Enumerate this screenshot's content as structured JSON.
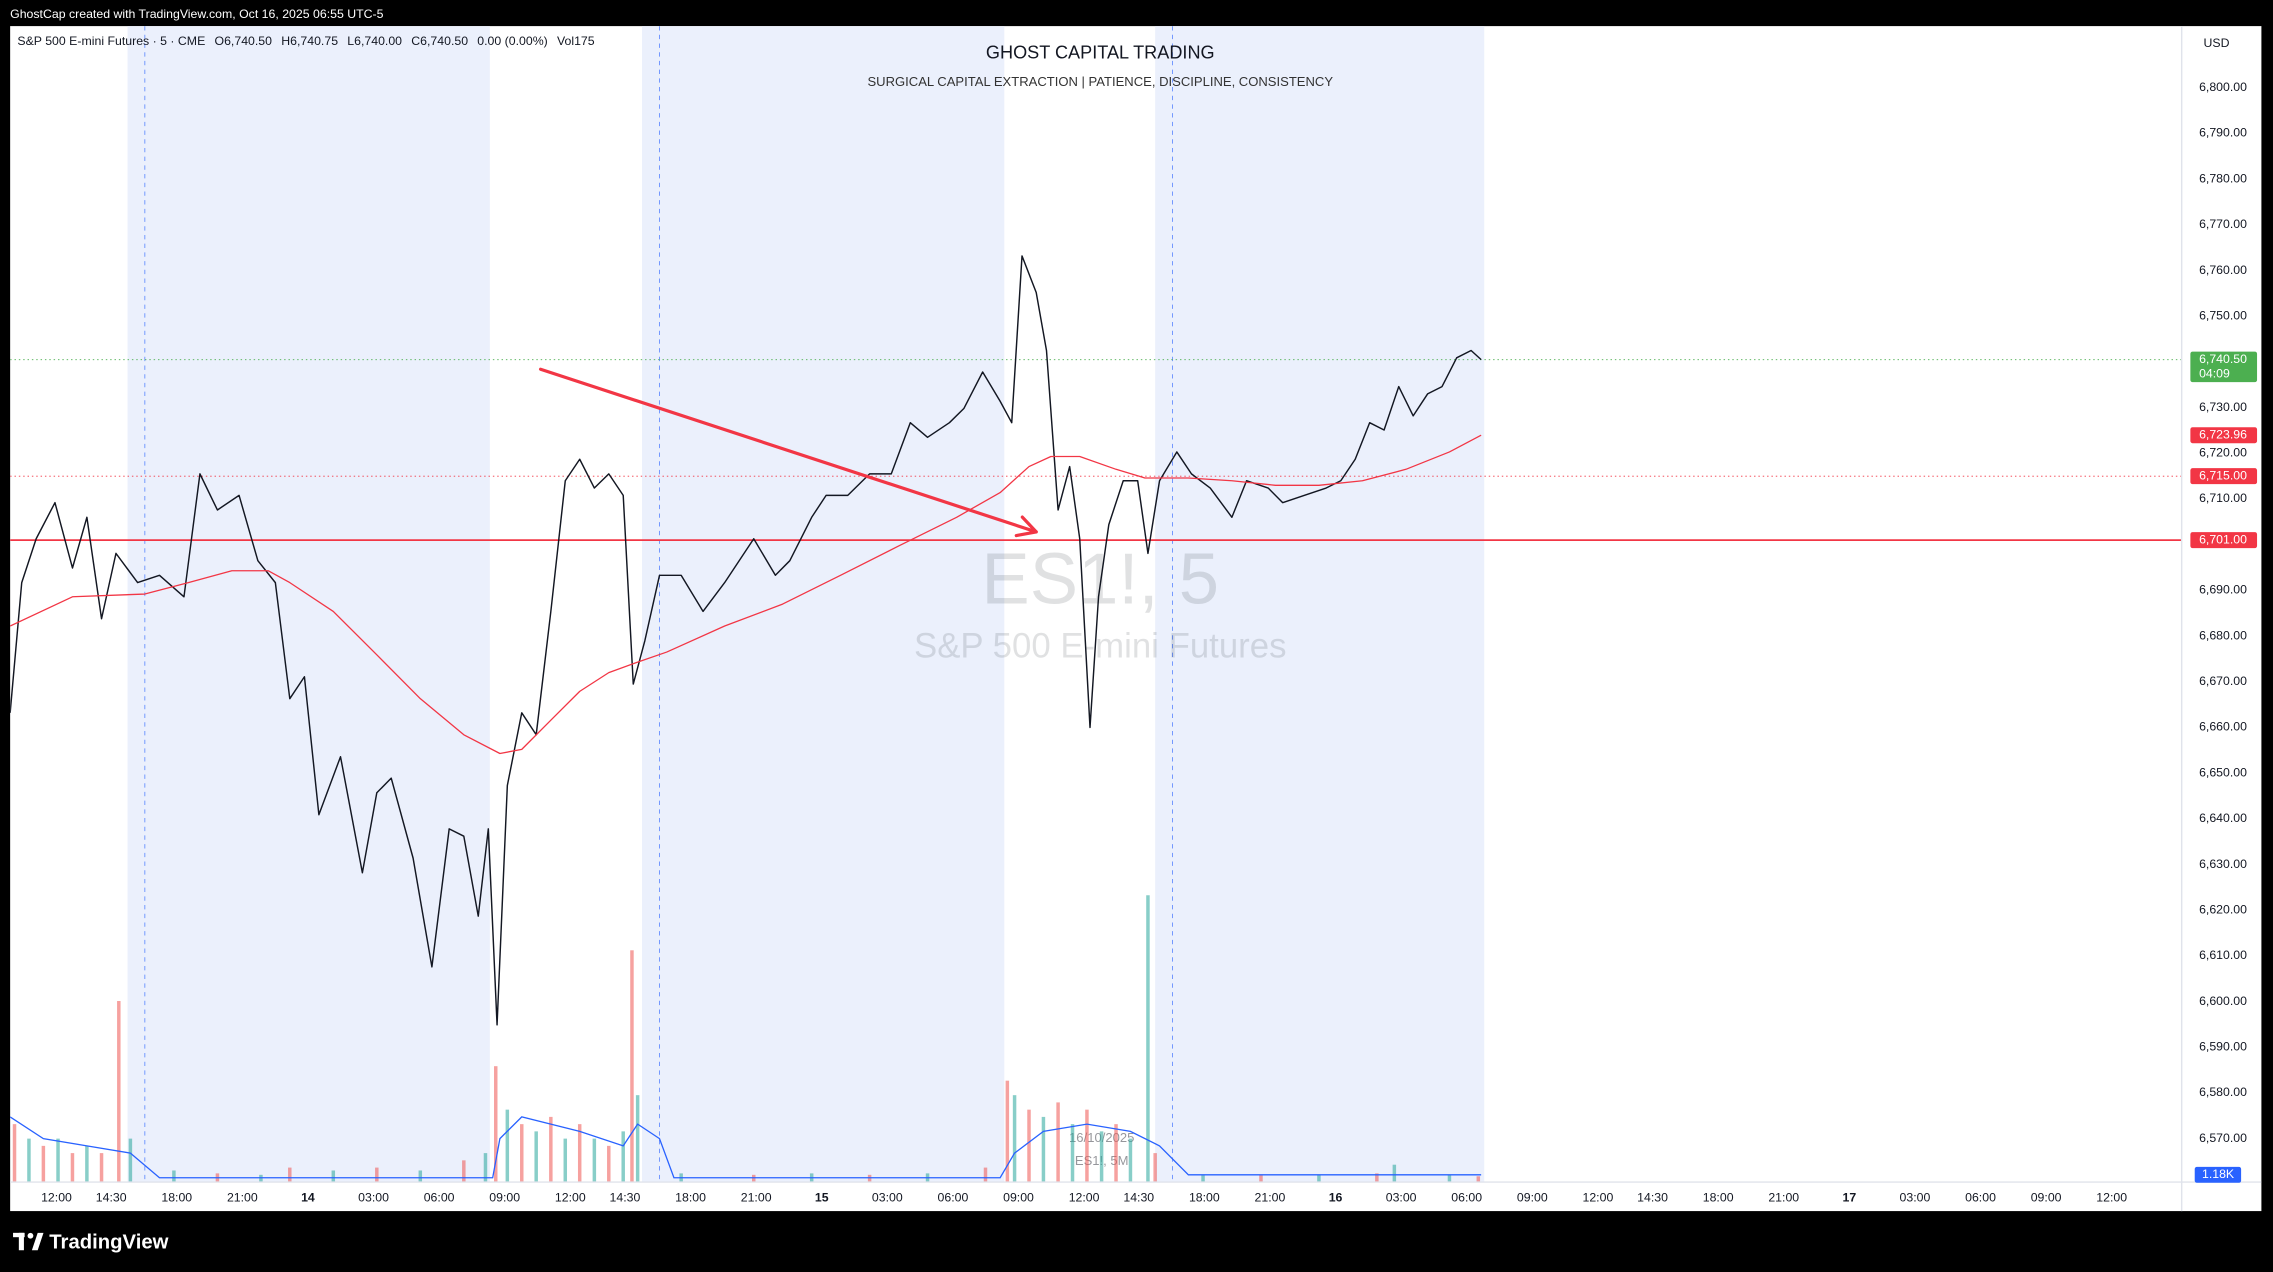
{
  "header": {
    "attribution": "GhostCap created with TradingView.com, Oct 16, 2025 06:55 UTC-5",
    "brand": "TradingView"
  },
  "chart_data": {
    "type": "line",
    "title": "GHOST CAPITAL TRADING",
    "subtitle": "SURGICAL CAPITAL EXTRACTION |  PATIENCE, DISCIPLINE, CONSISTENCY",
    "symbol": "S&P 500 E-mini Futures · 5 · CME",
    "ohlc": [
      "O6,740.50",
      "H6,740.75",
      "L6,740.00",
      "C6,740.50",
      "0.00 (0.00%)",
      "Vol175"
    ],
    "watermark": "ES1!, 5",
    "watermark_name": "S&P 500 E-mini Futures",
    "stamp": [
      "16/10/2025",
      "ES1!, 5M"
    ],
    "currency": "USD",
    "grid": false,
    "xlim": [
      -2.12,
      97.2
    ],
    "ylim": [
      6560.5,
      6813.5
    ],
    "xticks": [
      {
        "value": 0,
        "label": "12:00"
      },
      {
        "value": 2.5,
        "label": "14:30"
      },
      {
        "value": 5.5,
        "label": "18:00"
      },
      {
        "value": 8.5,
        "label": "21:00"
      },
      {
        "value": 11.5,
        "label": "14",
        "major": true
      },
      {
        "value": 14.5,
        "label": "03:00"
      },
      {
        "value": 17.5,
        "label": "06:00"
      },
      {
        "value": 20.5,
        "label": "09:00"
      },
      {
        "value": 23.5,
        "label": "12:00"
      },
      {
        "value": 26,
        "label": "14:30"
      },
      {
        "value": 29,
        "label": "18:00"
      },
      {
        "value": 32,
        "label": "21:00"
      },
      {
        "value": 35,
        "label": "15",
        "major": true
      },
      {
        "value": 38,
        "label": "03:00"
      },
      {
        "value": 41,
        "label": "06:00"
      },
      {
        "value": 44,
        "label": "09:00"
      },
      {
        "value": 47,
        "label": "12:00"
      },
      {
        "value": 49.5,
        "label": "14:30"
      },
      {
        "value": 52.5,
        "label": "18:00"
      },
      {
        "value": 55.5,
        "label": "21:00"
      },
      {
        "value": 58.5,
        "label": "16",
        "major": true
      },
      {
        "value": 61.5,
        "label": "03:00"
      },
      {
        "value": 64.5,
        "label": "06:00"
      },
      {
        "value": 67.5,
        "label": "09:00"
      },
      {
        "value": 70.5,
        "label": "12:00"
      },
      {
        "value": 73,
        "label": "14:30"
      },
      {
        "value": 76,
        "label": "18:00"
      },
      {
        "value": 79,
        "label": "21:00"
      },
      {
        "value": 82,
        "label": "17",
        "major": true
      },
      {
        "value": 85,
        "label": "03:00"
      },
      {
        "value": 88,
        "label": "06:00"
      },
      {
        "value": 91,
        "label": "09:00"
      },
      {
        "value": 94,
        "label": "12:00"
      }
    ],
    "yticks": [
      {
        "value": 6570,
        "label": "6,570.00"
      },
      {
        "value": 6580,
        "label": "6,580.00"
      },
      {
        "value": 6590,
        "label": "6,590.00"
      },
      {
        "value": 6600,
        "label": "6,600.00"
      },
      {
        "value": 6610,
        "label": "6,610.00"
      },
      {
        "value": 6620,
        "label": "6,620.00"
      },
      {
        "value": 6630,
        "label": "6,630.00"
      },
      {
        "value": 6640,
        "label": "6,640.00"
      },
      {
        "value": 6650,
        "label": "6,650.00"
      },
      {
        "value": 6660,
        "label": "6,660.00"
      },
      {
        "value": 6670,
        "label": "6,670.00"
      },
      {
        "value": 6680,
        "label": "6,680.00"
      },
      {
        "value": 6690,
        "label": "6,690.00"
      },
      {
        "value": 6710,
        "label": "6,710.00"
      },
      {
        "value": 6720,
        "label": "6,720.00"
      },
      {
        "value": 6730,
        "label": "6,730.00"
      },
      {
        "value": 6750,
        "label": "6,750.00"
      },
      {
        "value": 6760,
        "label": "6,760.00"
      },
      {
        "value": 6770,
        "label": "6,770.00"
      },
      {
        "value": 6780,
        "label": "6,780.00"
      },
      {
        "value": 6790,
        "label": "6,790.00"
      },
      {
        "value": 6800,
        "label": "6,800.00"
      }
    ],
    "sessions": {
      "color": "#ebf0fc",
      "ranges": [
        [
          3.25,
          19.82
        ],
        [
          26.78,
          43.35
        ],
        [
          50.25,
          65.3
        ]
      ],
      "markers": [
        4.04,
        27.58,
        51.04
      ]
    },
    "series": [
      {
        "color": "#131722",
        "x": [
          -2.12,
          -1.59,
          -0.93,
          -0.07,
          0.73,
          1.39,
          2.06,
          2.72,
          3.71,
          4.71,
          5.83,
          6.56,
          7.36,
          8.35,
          9.21,
          10.01,
          10.67,
          11.34,
          12.0,
          12.99,
          13.99,
          14.65,
          15.31,
          16.31,
          17.17,
          17.96,
          18.63,
          19.29,
          19.75,
          20.15,
          20.62,
          21.28,
          21.94,
          22.61,
          23.27,
          23.93,
          24.6,
          25.26,
          25.92,
          26.38,
          26.91,
          27.58,
          28.57,
          29.57,
          30.56,
          31.89,
          32.88,
          33.54,
          34.54,
          35.2,
          36.19,
          37.19,
          38.18,
          39.05,
          39.84,
          40.84,
          41.5,
          42.36,
          43.16,
          43.69,
          44.16,
          44.81,
          45.28,
          45.81,
          46.34,
          46.8,
          47.27,
          47.66,
          48.13,
          48.79,
          49.45,
          49.92,
          50.45,
          51.24,
          51.91,
          52.77,
          53.76,
          54.43,
          55.42,
          56.08,
          57.08,
          58.07,
          58.74,
          59.4,
          60.06,
          60.72,
          61.39,
          62.05,
          62.71,
          63.37,
          64.04,
          64.7,
          65.16
        ],
        "values": [
          6663.2,
          6691.7,
          6701.3,
          6709.2,
          6694.9,
          6706.0,
          6683.8,
          6698.1,
          6691.7,
          6693.3,
          6688.6,
          6715.5,
          6707.6,
          6710.8,
          6696.5,
          6691.7,
          6666.3,
          6671.1,
          6640.9,
          6653.6,
          6628.2,
          6645.7,
          6648.9,
          6631.4,
          6607.6,
          6637.8,
          6636.2,
          6618.7,
          6637.8,
          6594.9,
          6647.3,
          6663.2,
          6658.4,
          6685.4,
          6714.0,
          6718.7,
          6712.4,
          6715.5,
          6710.8,
          6669.5,
          6679.0,
          6693.3,
          6693.3,
          6685.4,
          6691.7,
          6701.3,
          6693.3,
          6696.5,
          6706.0,
          6710.8,
          6710.8,
          6715.5,
          6715.5,
          6726.7,
          6723.5,
          6726.7,
          6729.8,
          6737.8,
          6731.4,
          6726.7,
          6763.2,
          6755.2,
          6742.5,
          6707.6,
          6717.1,
          6701.3,
          6660.0,
          6688.6,
          6704.4,
          6714.0,
          6714.0,
          6698.1,
          6714.0,
          6720.3,
          6715.5,
          6712.4,
          6706.0,
          6714.0,
          6712.4,
          6709.2,
          6710.8,
          6712.4,
          6714.0,
          6718.7,
          6726.7,
          6725.1,
          6734.6,
          6728.2,
          6733.0,
          6734.6,
          6740.9,
          6742.5,
          6740.5
        ]
      },
      {
        "color": "#f23645",
        "x": [
          -2.12,
          0.73,
          4.04,
          6.03,
          8.02,
          9.68,
          10.67,
          12.66,
          14.65,
          16.64,
          18.63,
          20.28,
          21.28,
          22.61,
          23.93,
          25.26,
          26.58,
          27.91,
          30.56,
          33.21,
          35.86,
          38.51,
          41.17,
          43.16,
          44.48,
          45.48,
          46.8,
          48.46,
          49.78,
          51.77,
          53.76,
          55.75,
          57.74,
          59.73,
          61.72,
          63.71,
          65.16
        ],
        "values": [
          6682.2,
          6688.6,
          6689.2,
          6691.7,
          6694.3,
          6694.3,
          6691.7,
          6685.4,
          6675.9,
          6666.3,
          6658.4,
          6654.3,
          6655.2,
          6661.6,
          6667.9,
          6672.0,
          6674.3,
          6676.5,
          6682.2,
          6687.0,
          6693.3,
          6699.7,
          6706.0,
          6711.4,
          6717.1,
          6719.3,
          6719.3,
          6716.5,
          6714.6,
          6714.6,
          6714.0,
          6713.0,
          6713.0,
          6714.0,
          6716.5,
          6720.3,
          6723.96
        ]
      }
    ],
    "price_labels": [
      {
        "value": 6740.5,
        "label": "6,740.50",
        "sub": "04:09",
        "color": "#4caf50",
        "line": "dotted"
      },
      {
        "value": 6723.96,
        "label": "6,723.96",
        "color": "#f23645"
      },
      {
        "value": 6715,
        "label": "6,715.00",
        "color": "#f23645",
        "line": "dotted"
      },
      {
        "value": 6701,
        "label": "6,701.00",
        "color": "#f23645",
        "line": "solid"
      }
    ],
    "arrow": {
      "from": [
        22.14,
        6738.4
      ],
      "to": [
        44.81,
        6702.8
      ],
      "color": "#f23645"
    },
    "volume": {
      "ylim": [
        0,
        60000
      ],
      "series": [
        {
          "color": "rgba(38,166,154,0.55)",
          "x": [
            -1.26,
            0.07,
            1.39,
            3.38,
            5.37,
            9.35,
            12.66,
            16.64,
            19.62,
            20.62,
            21.94,
            23.27,
            24.6,
            25.92,
            26.58,
            28.57,
            34.54,
            39.84,
            43.82,
            45.14,
            46.47,
            47.8,
            49.12,
            49.92,
            52.44,
            57.74,
            61.19,
            63.71
          ],
          "values": [
            7050,
            7050,
            5875,
            7050,
            1880,
            1175,
            1880,
            1880,
            4700,
            11750,
            8225,
            7050,
            7050,
            8225,
            14100,
            1410,
            1410,
            1410,
            14100,
            10575,
            9400,
            8225,
            7050,
            46530,
            1175,
            1175,
            2820,
            1175
          ]
        },
        {
          "color": "rgba(239,83,80,0.55)",
          "x": [
            -1.92,
            -0.6,
            0.73,
            2.06,
            2.85,
            7.36,
            10.67,
            14.65,
            18.63,
            20.09,
            21.28,
            22.61,
            23.93,
            25.26,
            26.32,
            31.89,
            37.19,
            42.49,
            43.49,
            44.48,
            45.81,
            47.13,
            48.46,
            50.25,
            55.09,
            60.39,
            65.03
          ],
          "values": [
            9400,
            5875,
            4700,
            4700,
            29375,
            1410,
            2350,
            2350,
            3525,
            18800,
            9400,
            10575,
            9400,
            5875,
            37600,
            1175,
            1175,
            2350,
            16450,
            11750,
            12925,
            11750,
            9400,
            4700,
            1175,
            1410,
            940
          ]
        }
      ],
      "ma": {
        "color": "#2962ff",
        "x": [
          -2.12,
          -0.6,
          1.39,
          3.38,
          4.71,
          19.95,
          20.28,
          21.28,
          23.93,
          25.92,
          26.58,
          27.58,
          28.24,
          43.16,
          43.82,
          45.14,
          47.13,
          49.12,
          50.45,
          51.77,
          65.16
        ],
        "values": [
          10575,
          7050,
          5875,
          4700,
          705,
          705,
          7050,
          10575,
          8225,
          5875,
          9400,
          7050,
          705,
          705,
          4700,
          8225,
          9400,
          8225,
          5875,
          1180,
          1180
        ]
      },
      "value_label": {
        "value": 1180,
        "label": "1.18K"
      }
    }
  }
}
